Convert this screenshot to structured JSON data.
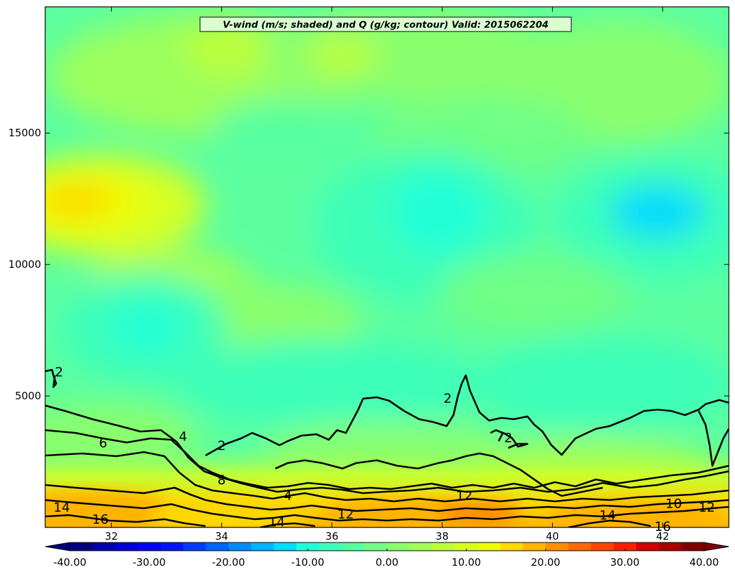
{
  "chart_data": {
    "type": "heatmap",
    "title": "V-wind (m/s; shaded) and Q (g/kg; contour) Valid: 2015062204",
    "x_ticks": [
      32,
      34,
      36,
      38,
      40,
      42
    ],
    "y_ticks": [
      5000,
      10000,
      15000
    ],
    "xlim": [
      30.8,
      43.2
    ],
    "ylim": [
      0,
      19800
    ],
    "grid": false,
    "colorbar": {
      "orientation": "horizontal",
      "placement": "bottom",
      "range": [
        -40,
        40
      ],
      "extend": "both",
      "tick_labels": [
        "-40.00",
        "-30.00",
        "-20.00",
        "-10.00",
        "0.00",
        "10.00",
        "20.00",
        "30.00",
        "40.00"
      ],
      "colors": [
        "#00007f",
        "#0000a8",
        "#0000d1",
        "#0000fa",
        "#0014ff",
        "#003cff",
        "#0064ff",
        "#008cff",
        "#00b4ff",
        "#00dcfc",
        "#20ffd7",
        "#3cffba",
        "#57ffa0",
        "#70ff87",
        "#8aff6d",
        "#a3ff54",
        "#bdff3a",
        "#d7ff20",
        "#f0fc06",
        "#ffd900",
        "#ffb400",
        "#ff8f00",
        "#ff6a00",
        "#ff4500",
        "#fa1e00",
        "#d10000",
        "#a80000",
        "#7f0000"
      ]
    },
    "shaded_features": [
      {
        "label": "positive V-wind maximum, lower left",
        "x": 31.2,
        "y": 12300,
        "value": 18
      },
      {
        "label": "near-surface positive V-wind band",
        "x_range": [
          30.8,
          43.2
        ],
        "y_range": [
          0,
          1200
        ],
        "value": 17
      },
      {
        "label": "negative V-wind region, upper right",
        "x": 41.8,
        "y": 12000,
        "value": -12
      },
      {
        "label": "negative V-wind region, mid left",
        "x": 32.7,
        "y": 7500,
        "value": -10
      }
    ],
    "contour_labels": [
      {
        "text": "2",
        "x": 31.05,
        "y": 5900
      },
      {
        "text": "6",
        "x": 31.85,
        "y": 3200
      },
      {
        "text": "4",
        "x": 33.3,
        "y": 3450
      },
      {
        "text": "2",
        "x": 34.0,
        "y": 3100
      },
      {
        "text": "8",
        "x": 34.0,
        "y": 1800
      },
      {
        "text": "4",
        "x": 35.2,
        "y": 1200
      },
      {
        "text": "12",
        "x": 36.25,
        "y": 500
      },
      {
        "text": "12",
        "x": 38.4,
        "y": 1200
      },
      {
        "text": "2",
        "x": 38.1,
        "y": 4900
      },
      {
        "text": "2",
        "x": 39.2,
        "y": 3400
      },
      {
        "text": "14",
        "x": 31.1,
        "y": 750
      },
      {
        "text": "16",
        "x": 31.8,
        "y": 300
      },
      {
        "text": "14",
        "x": 35.0,
        "y": 200
      },
      {
        "text": "14",
        "x": 41.0,
        "y": 450
      },
      {
        "text": "10",
        "x": 42.2,
        "y": 900
      },
      {
        "text": "12",
        "x": 42.8,
        "y": 750
      },
      {
        "text": "16",
        "x": 42.0,
        "y": 20
      }
    ]
  }
}
